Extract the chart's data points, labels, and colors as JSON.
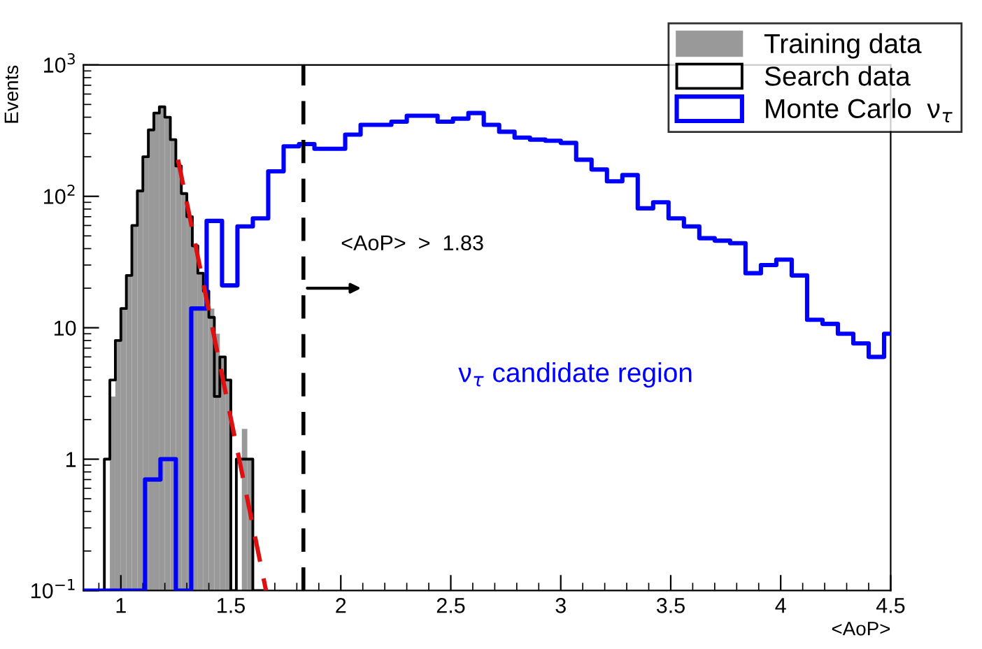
{
  "chart_data": {
    "type": "histogram",
    "xlabel": "<AoP>",
    "ylabel": "Events",
    "xlim": [
      0.83,
      4.5
    ],
    "xticks": [
      1,
      1.5,
      2,
      2.5,
      3,
      3.5,
      4,
      4.5
    ],
    "ylim": [
      0.1,
      1000
    ],
    "log": true,
    "yticks": [
      {
        "value": 0.1,
        "label": "10$^{−1}$"
      },
      1,
      10,
      {
        "value": 100,
        "label": "10$^{2}$"
      },
      {
        "value": 1000,
        "label": "10$^{3}$"
      }
    ],
    "grid": false,
    "legend": "top right",
    "series": [
      {
        "name": "Training data",
        "color": "#999999",
        "bins": [
          0.95,
          0.975,
          1.0,
          1.025,
          1.05,
          1.075,
          1.1,
          1.125,
          1.15,
          1.175,
          1.2,
          1.225,
          1.25,
          1.275,
          1.3,
          1.325,
          1.35,
          1.375,
          1.4,
          1.425,
          1.45,
          1.475,
          1.5,
          1.525,
          1.55,
          1.575,
          1.6,
          1.625,
          1.65
        ],
        "values": [
          3,
          8,
          14,
          25,
          60,
          110,
          200,
          320,
          430,
          470,
          400,
          270,
          170,
          105,
          70,
          42,
          26,
          18,
          14,
          9,
          6,
          4,
          null,
          null,
          1.7,
          1,
          null,
          null
        ]
      },
      {
        "name": "Search data",
        "type": "step",
        "color": "#000000",
        "x": [
          0.9,
          0.925,
          0.95,
          0.975,
          1.0,
          1.025,
          1.05,
          1.075,
          1.1,
          1.125,
          1.15,
          1.175,
          1.2,
          1.225,
          1.25,
          1.275,
          1.3,
          1.325,
          1.35,
          1.375,
          1.4,
          1.425,
          1.45,
          1.475,
          1.5,
          1.525,
          1.55,
          1.575,
          1.6,
          1.625,
          1.65
        ],
        "values": [
          0.1,
          1,
          4,
          8,
          14,
          25,
          60,
          110,
          200,
          320,
          430,
          480,
          400,
          270,
          170,
          105,
          70,
          42,
          26,
          19,
          12,
          3,
          6,
          4,
          0.1,
          1,
          1,
          1,
          0.1,
          0.1,
          0.1
        ]
      },
      {
        "name": "Monte Carlo  ν$_{τ}$",
        "type": "step",
        "color": "#0000ff",
        "x": [
          0.83,
          0.9,
          0.97,
          1.04,
          1.11,
          1.18,
          1.25,
          1.32,
          1.39,
          1.46,
          1.53,
          1.6,
          1.67,
          1.74,
          1.81,
          1.88,
          1.95,
          2.02,
          2.09,
          2.16,
          2.23,
          2.3,
          2.37,
          2.44,
          2.51,
          2.58,
          2.65,
          2.72,
          2.79,
          2.86,
          2.93,
          3.0,
          3.07,
          3.14,
          3.21,
          3.28,
          3.35,
          3.42,
          3.49,
          3.56,
          3.63,
          3.7,
          3.77,
          3.84,
          3.91,
          3.98,
          4.05,
          4.12,
          4.19,
          4.26,
          4.33,
          4.4,
          4.47,
          4.5
        ],
        "values": [
          0.1,
          0.1,
          0.1,
          0.1,
          0.7,
          1.0,
          0.1,
          14,
          65,
          21,
          59,
          68,
          155,
          240,
          250,
          230,
          230,
          295,
          350,
          350,
          370,
          410,
          410,
          370,
          390,
          430,
          350,
          310,
          280,
          270,
          265,
          255,
          190,
          160,
          130,
          145,
          81,
          90,
          68,
          59,
          48,
          46,
          44,
          26,
          30,
          33,
          25,
          11.5,
          10.7,
          9,
          7.6,
          6,
          9,
          9
        ]
      },
      {
        "type": "line",
        "color": "#dd1111",
        "line_style": "dashed",
        "x": [
          1.26,
          1.66
        ],
        "values": [
          190,
          0.1
        ]
      }
    ],
    "ref_lines": [
      {
        "axis": "x",
        "value": 1.83,
        "color": "#000000",
        "line_style": "dashed"
      }
    ],
    "annotations": [
      {
        "text": "<AoP>  >  1.83",
        "x": 1.83,
        "y": 20
      },
      "ν$_{τ}$ candidate region"
    ]
  }
}
